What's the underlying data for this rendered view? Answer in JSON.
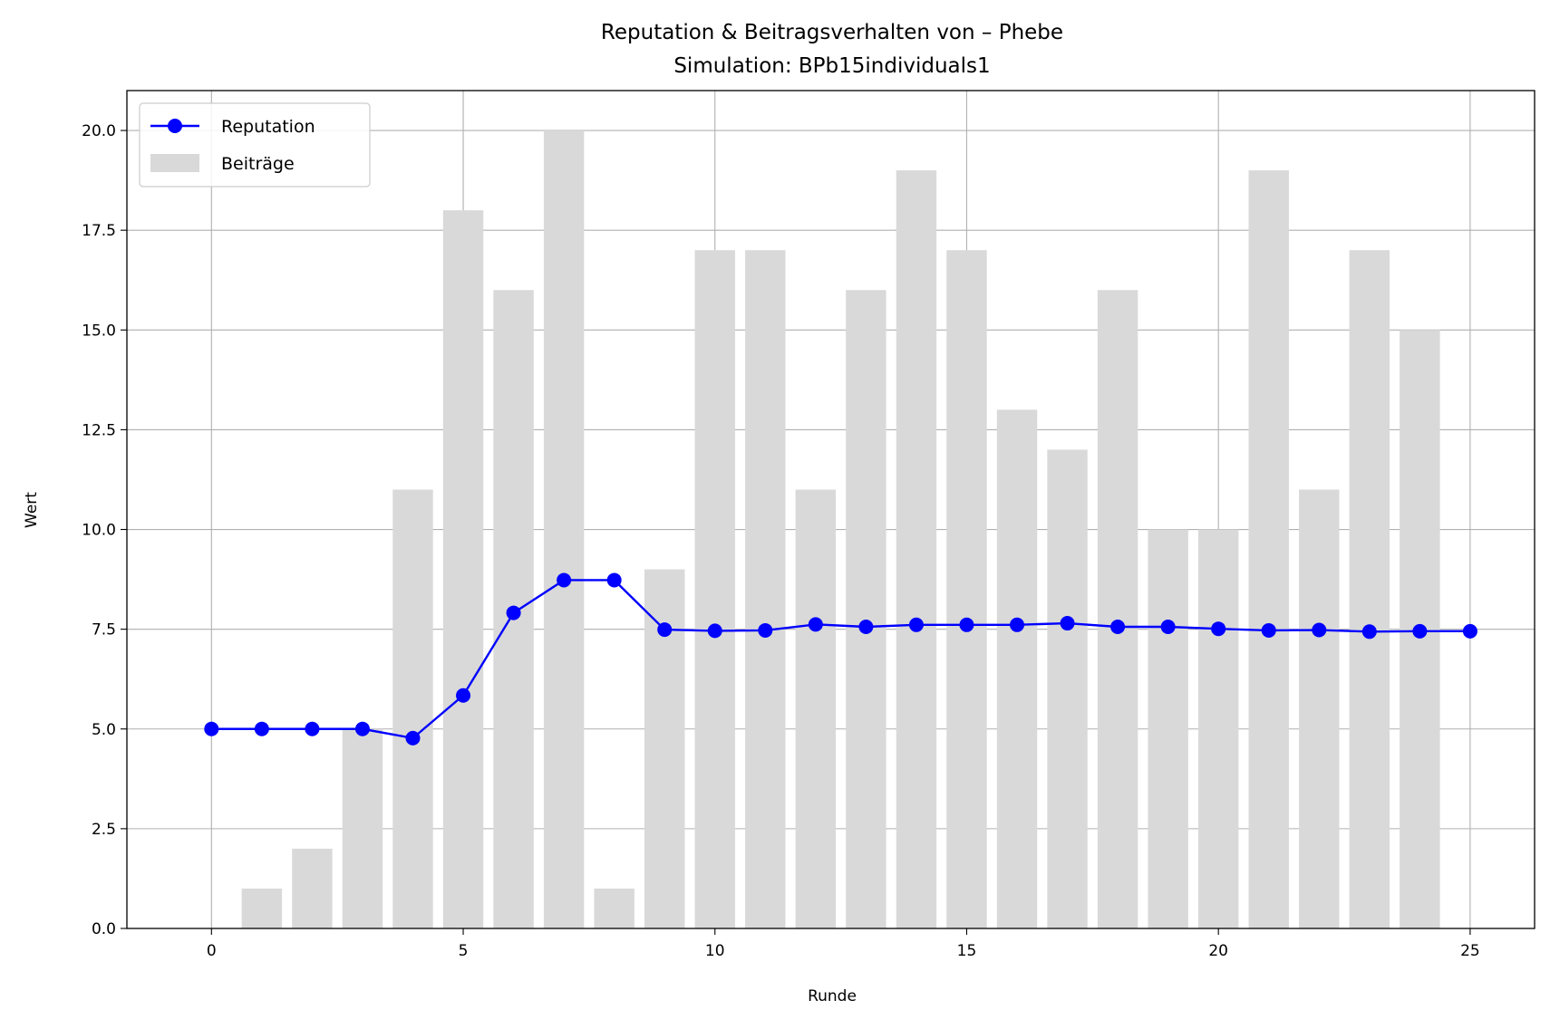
{
  "chart_data": {
    "type": "bar+line",
    "title": "Reputation & Beitragsverhalten von – Phebe",
    "subtitle": "Simulation: BPb15individuals1",
    "xlabel": "Runde",
    "ylabel": "Wert",
    "xlim": [
      -1.68,
      26.28
    ],
    "ylim": [
      0,
      21
    ],
    "xticks": [
      0,
      5,
      10,
      15,
      20,
      25
    ],
    "xtick_labels": [
      "0",
      "5",
      "10",
      "15",
      "20",
      "25"
    ],
    "yticks": [
      0,
      2.5,
      5,
      7.5,
      10,
      12.5,
      15,
      17.5,
      20
    ],
    "ytick_labels": [
      "0.0",
      "2.5",
      "5.0",
      "7.5",
      "10.0",
      "12.5",
      "15.0",
      "17.5",
      "20.0"
    ],
    "grid": true,
    "legend": {
      "position": "upper left",
      "entries": [
        {
          "label": "Reputation",
          "kind": "line-marker"
        },
        {
          "label": "Beiträge",
          "kind": "bar"
        }
      ]
    },
    "series": [
      {
        "name": "Beiträge",
        "kind": "bar",
        "color": "#d9d9d9",
        "x": [
          1,
          2,
          3,
          4,
          5,
          6,
          7,
          8,
          9,
          10,
          11,
          12,
          13,
          14,
          15,
          16,
          17,
          18,
          19,
          20,
          21,
          22,
          23,
          24
        ],
        "values": [
          1,
          2,
          5,
          11,
          18,
          16,
          20,
          1,
          9,
          17,
          17,
          11,
          16,
          19,
          17,
          13,
          12,
          16,
          10,
          10,
          19,
          11,
          17,
          15
        ]
      },
      {
        "name": "Reputation",
        "kind": "line",
        "color": "#0000ff",
        "x": [
          0,
          1,
          2,
          3,
          4,
          5,
          6,
          7,
          8,
          9,
          10,
          11,
          12,
          13,
          14,
          15,
          16,
          17,
          18,
          19,
          20,
          21,
          22,
          23,
          24,
          25
        ],
        "values": [
          5.0,
          5.0,
          5.0,
          5.0,
          4.77,
          5.84,
          7.91,
          8.73,
          8.73,
          7.49,
          7.46,
          7.47,
          7.62,
          7.56,
          7.61,
          7.61,
          7.61,
          7.65,
          7.56,
          7.56,
          7.51,
          7.47,
          7.48,
          7.44,
          7.45,
          7.45
        ]
      }
    ]
  }
}
